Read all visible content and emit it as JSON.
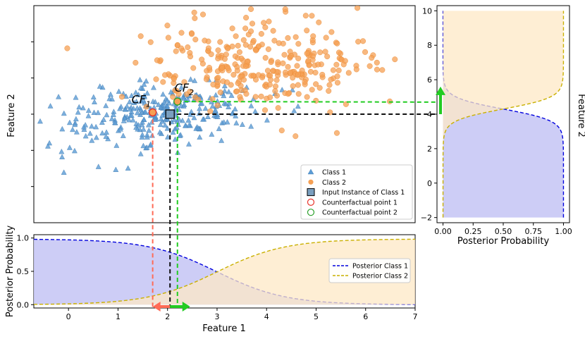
{
  "chart_data": [
    {
      "type": "scatter",
      "ylabel": "Feature 2",
      "xlim": [
        -0.7,
        7.0
      ],
      "ylim": [
        -2.0,
        10.0
      ],
      "series": [
        {
          "name": "Class 1",
          "marker": "triangle",
          "color": "#5b9bd5",
          "center": [
            1.8,
            4.0
          ],
          "spread": [
            1.0,
            0.9
          ],
          "count": 300
        },
        {
          "name": "Class 2",
          "marker": "circle",
          "color": "#f5a054",
          "center": [
            3.8,
            6.8
          ],
          "spread": [
            1.1,
            1.2
          ],
          "count": 300
        }
      ],
      "input_instance": {
        "label": "Input Instance of Class 1",
        "x": 2.05,
        "y": 4.0,
        "color": "#7a9fbf"
      },
      "counterfactuals": [
        {
          "label": "Counterfactual point 1",
          "annot": "CF",
          "sub": "1",
          "x": 1.7,
          "y": 4.1,
          "color": "#e8332a"
        },
        {
          "label": "Counterfactual point 2",
          "annot": "CF",
          "sub": "2",
          "x": 2.2,
          "y": 4.7,
          "color": "#2ca02c"
        }
      ],
      "legend": [
        "Class 1",
        "Class 2",
        "Input Instance of Class 1",
        "Counterfactual point 1",
        "Counterfactual point 2"
      ],
      "legend_position": "lower right"
    },
    {
      "type": "line",
      "xlabel": "Feature 1",
      "ylabel": "Posterior Probability",
      "xlim": [
        -0.7,
        7.0
      ],
      "ylim": [
        -0.05,
        1.05
      ],
      "xticks": [
        "0",
        "1",
        "2",
        "3",
        "4",
        "5",
        "6",
        "7"
      ],
      "yticks": [
        "0.0",
        "0.5",
        "1.0"
      ],
      "series": [
        {
          "name": "Posterior Class 1",
          "style": "dashed",
          "color": "#0000dd",
          "fill": "#c8c8f5",
          "center": 3.0,
          "slope": 1.45,
          "decreasing": true
        },
        {
          "name": "Posterior Class 2",
          "style": "dashed",
          "color": "#c9b000",
          "fill": "#fde8c6",
          "center": 3.0,
          "slope": 1.45,
          "decreasing": false
        }
      ],
      "legend_position": "center right"
    },
    {
      "type": "line",
      "xlabel": "Posterior Probability",
      "ylabel": "Feature 2",
      "xlim": [
        -0.05,
        1.05
      ],
      "ylim": [
        -2.3,
        10.3
      ],
      "xticks": [
        "0.00",
        "0.25",
        "0.50",
        "0.75",
        "1.00"
      ],
      "yticks": [
        "−2",
        "0",
        "2",
        "4",
        "6",
        "8",
        "10"
      ],
      "series": [
        {
          "name": "Posterior Class 1",
          "style": "dashed",
          "color": "#0000dd",
          "fill": "#c8c8f5",
          "center": 4.3,
          "slope": 3.0,
          "decreasing": true
        },
        {
          "name": "Posterior Class 2",
          "style": "dashed",
          "color": "#c9b000",
          "fill": "#fde8c6",
          "center": 4.3,
          "slope": 3.0,
          "decreasing": false
        }
      ]
    }
  ]
}
